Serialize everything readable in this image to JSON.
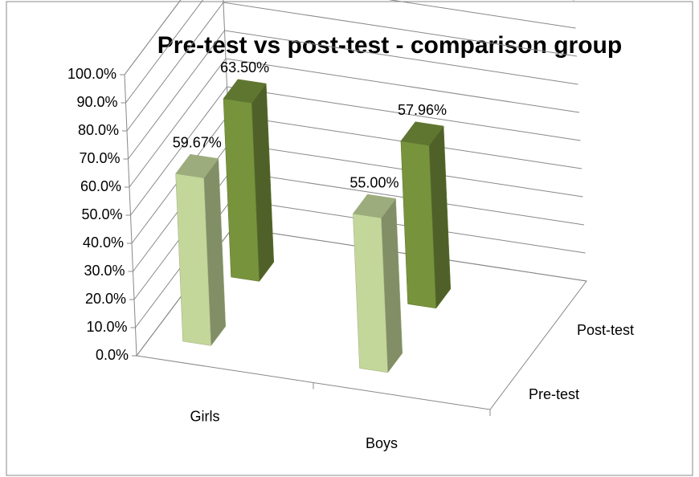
{
  "chart_data": {
    "type": "bar3d",
    "title": "Pre-test vs post-test - comparison group",
    "categories": [
      "Girls",
      "Boys"
    ],
    "series": [
      {
        "name": "Pre-test",
        "color": "#c4d79b",
        "values": [
          59.67,
          55.0
        ],
        "value_labels": [
          "59.67%",
          "55.00%"
        ]
      },
      {
        "name": "Post-test",
        "color": "#77933c",
        "values": [
          63.5,
          57.96
        ],
        "value_labels": [
          "63.50%",
          "57.96%"
        ]
      }
    ],
    "ylim": [
      0,
      100
    ],
    "yticks": [
      {
        "value": 0,
        "label": "0.0%"
      },
      {
        "value": 10,
        "label": "10.0%"
      },
      {
        "value": 20,
        "label": "20.0%"
      },
      {
        "value": 30,
        "label": "30.0%"
      },
      {
        "value": 40,
        "label": "40.0%"
      },
      {
        "value": 50,
        "label": "50.0%"
      },
      {
        "value": 60,
        "label": "60.0%"
      },
      {
        "value": 70,
        "label": "70.0%"
      },
      {
        "value": 80,
        "label": "80.0%"
      },
      {
        "value": 90,
        "label": "90.0%"
      },
      {
        "value": 100,
        "label": "100.0%"
      }
    ],
    "grid": true
  }
}
